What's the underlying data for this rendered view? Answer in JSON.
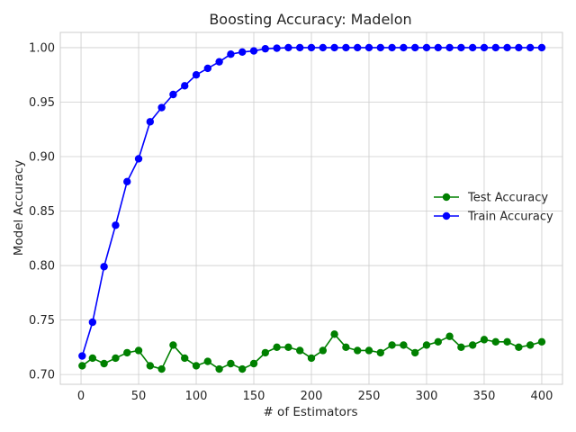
{
  "chart_data": {
    "type": "line",
    "title": "Boosting Accuracy: Madelon",
    "xlabel": "# of Estimators",
    "ylabel": "Model Accuracy",
    "xlim": [
      -18,
      418
    ],
    "ylim": [
      0.691,
      1.014
    ],
    "xticks": [
      0,
      50,
      100,
      150,
      200,
      250,
      300,
      350,
      400
    ],
    "yticks": [
      0.7,
      0.75,
      0.8,
      0.85,
      0.9,
      0.95,
      1.0
    ],
    "ytick_labels": [
      "0.70",
      "0.75",
      "0.80",
      "0.85",
      "0.90",
      "0.95",
      "1.00"
    ],
    "grid": true,
    "legend_position": "center-right",
    "x": [
      1,
      10,
      20,
      30,
      40,
      50,
      60,
      70,
      80,
      90,
      100,
      110,
      120,
      130,
      140,
      150,
      160,
      170,
      180,
      190,
      200,
      210,
      220,
      230,
      240,
      250,
      260,
      270,
      280,
      290,
      300,
      310,
      320,
      330,
      340,
      350,
      360,
      370,
      380,
      390,
      400
    ],
    "series": [
      {
        "name": "Test Accuracy",
        "color": "#008000",
        "values": [
          0.708,
          0.715,
          0.71,
          0.715,
          0.72,
          0.722,
          0.708,
          0.705,
          0.727,
          0.715,
          0.708,
          0.712,
          0.705,
          0.71,
          0.705,
          0.71,
          0.72,
          0.725,
          0.725,
          0.722,
          0.715,
          0.722,
          0.737,
          0.725,
          0.722,
          0.722,
          0.72,
          0.727,
          0.727,
          0.72,
          0.727,
          0.73,
          0.735,
          0.725,
          0.727,
          0.732,
          0.73,
          0.73,
          0.725,
          0.727,
          0.73
        ]
      },
      {
        "name": "Train Accuracy",
        "color": "#0000ff",
        "values": [
          0.717,
          0.748,
          0.799,
          0.837,
          0.877,
          0.898,
          0.932,
          0.945,
          0.957,
          0.965,
          0.975,
          0.981,
          0.987,
          0.994,
          0.996,
          0.997,
          0.999,
          0.9995,
          1.0,
          1.0,
          1.0,
          1.0,
          1.0,
          1.0,
          1.0,
          1.0,
          1.0,
          1.0,
          1.0,
          1.0,
          1.0,
          1.0,
          1.0,
          1.0,
          1.0,
          1.0,
          1.0,
          1.0,
          1.0,
          1.0,
          1.0
        ]
      }
    ]
  }
}
